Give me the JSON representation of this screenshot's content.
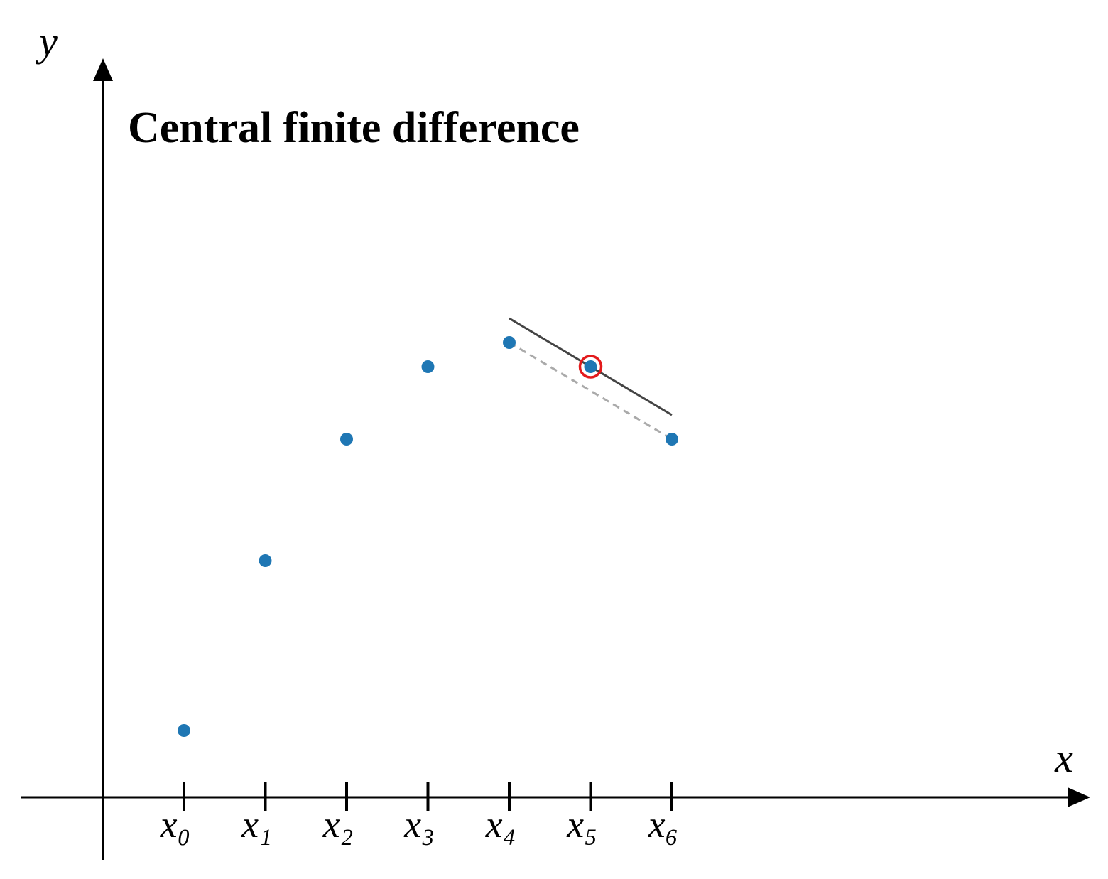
{
  "chart_data": {
    "type": "scatter",
    "title": "Central finite difference",
    "x_label": "x",
    "y_label": "y",
    "categories": [
      "x₀",
      "x₁",
      "x₂",
      "x₃",
      "x₄",
      "x₅",
      "x₆"
    ],
    "values": [
      0.94,
      3.33,
      5.04,
      6.06,
      6.4,
      6.06,
      5.04
    ],
    "color": "#1f77b4",
    "ylim": [
      0,
      10.4
    ],
    "highlight_index": 5,
    "highlight_color": "#e31a1c"
  }
}
